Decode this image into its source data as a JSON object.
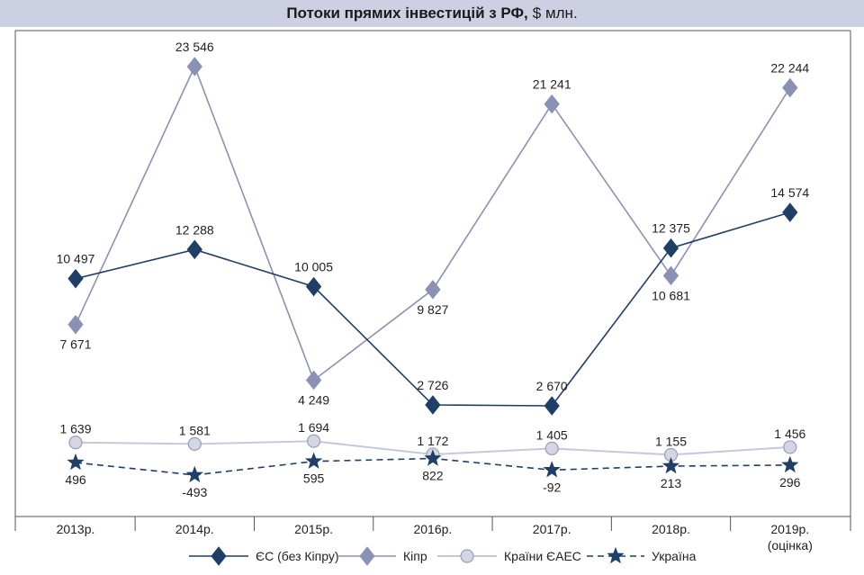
{
  "title": "Потоки прямих інвестицій з РФ,",
  "title_unit": "$ млн.",
  "chart_data": {
    "type": "line",
    "categories": [
      "2013р.",
      "2014р.",
      "2015р.",
      "2016р.",
      "2017р.",
      "2018р.",
      "2019р."
    ],
    "category_sublabels": [
      "",
      "",
      "",
      "",
      "",
      "",
      "(оцінка)"
    ],
    "series": [
      {
        "name": "ЄС (без Кіпру)",
        "values": [
          10497,
          12288,
          10005,
          2726,
          2670,
          12375,
          14574
        ],
        "labels": [
          "10 497",
          "12 288",
          "10 005",
          "2 726",
          "2 670",
          "12 375",
          "14 574"
        ],
        "color": "#1f3f66",
        "marker": "diamond",
        "dash": "solid",
        "label_position": [
          "above",
          "above",
          "above",
          "above",
          "above",
          "above",
          "above"
        ]
      },
      {
        "name": "Кіпр",
        "values": [
          7671,
          23546,
          4249,
          9827,
          21241,
          10681,
          22244
        ],
        "labels": [
          "7 671",
          "23 546",
          "4 249",
          "9 827",
          "21 241",
          "10 681",
          "22 244"
        ],
        "color": "#8b91b5",
        "marker": "diamond",
        "dash": "solid",
        "label_position": [
          "below",
          "above",
          "below",
          "below",
          "above",
          "below",
          "above"
        ]
      },
      {
        "name": "Країни ЄАЕС",
        "values": [
          1639,
          1581,
          1694,
          1172,
          1405,
          1155,
          1456
        ],
        "labels": [
          "1 639",
          "1 581",
          "1 694",
          "1 172",
          "1 405",
          "1 155",
          "1 456"
        ],
        "color": "#c5c8dc",
        "marker": "circle",
        "dash": "solid",
        "label_position": [
          "above",
          "above",
          "above",
          "above",
          "above",
          "above",
          "above"
        ]
      },
      {
        "name": "Україна",
        "values": [
          496,
          -493,
          595,
          822,
          -92,
          213,
          296
        ],
        "labels": [
          "496",
          "-493",
          "595",
          "822",
          "-92",
          "213",
          "296"
        ],
        "color": "#1f3f66",
        "marker": "star",
        "dash": "dashed",
        "label_position": [
          "below",
          "below",
          "below",
          "below",
          "below",
          "below",
          "below"
        ]
      }
    ],
    "ylim": [
      -1500,
      26000
    ],
    "grid": false,
    "legend_position": "bottom"
  }
}
